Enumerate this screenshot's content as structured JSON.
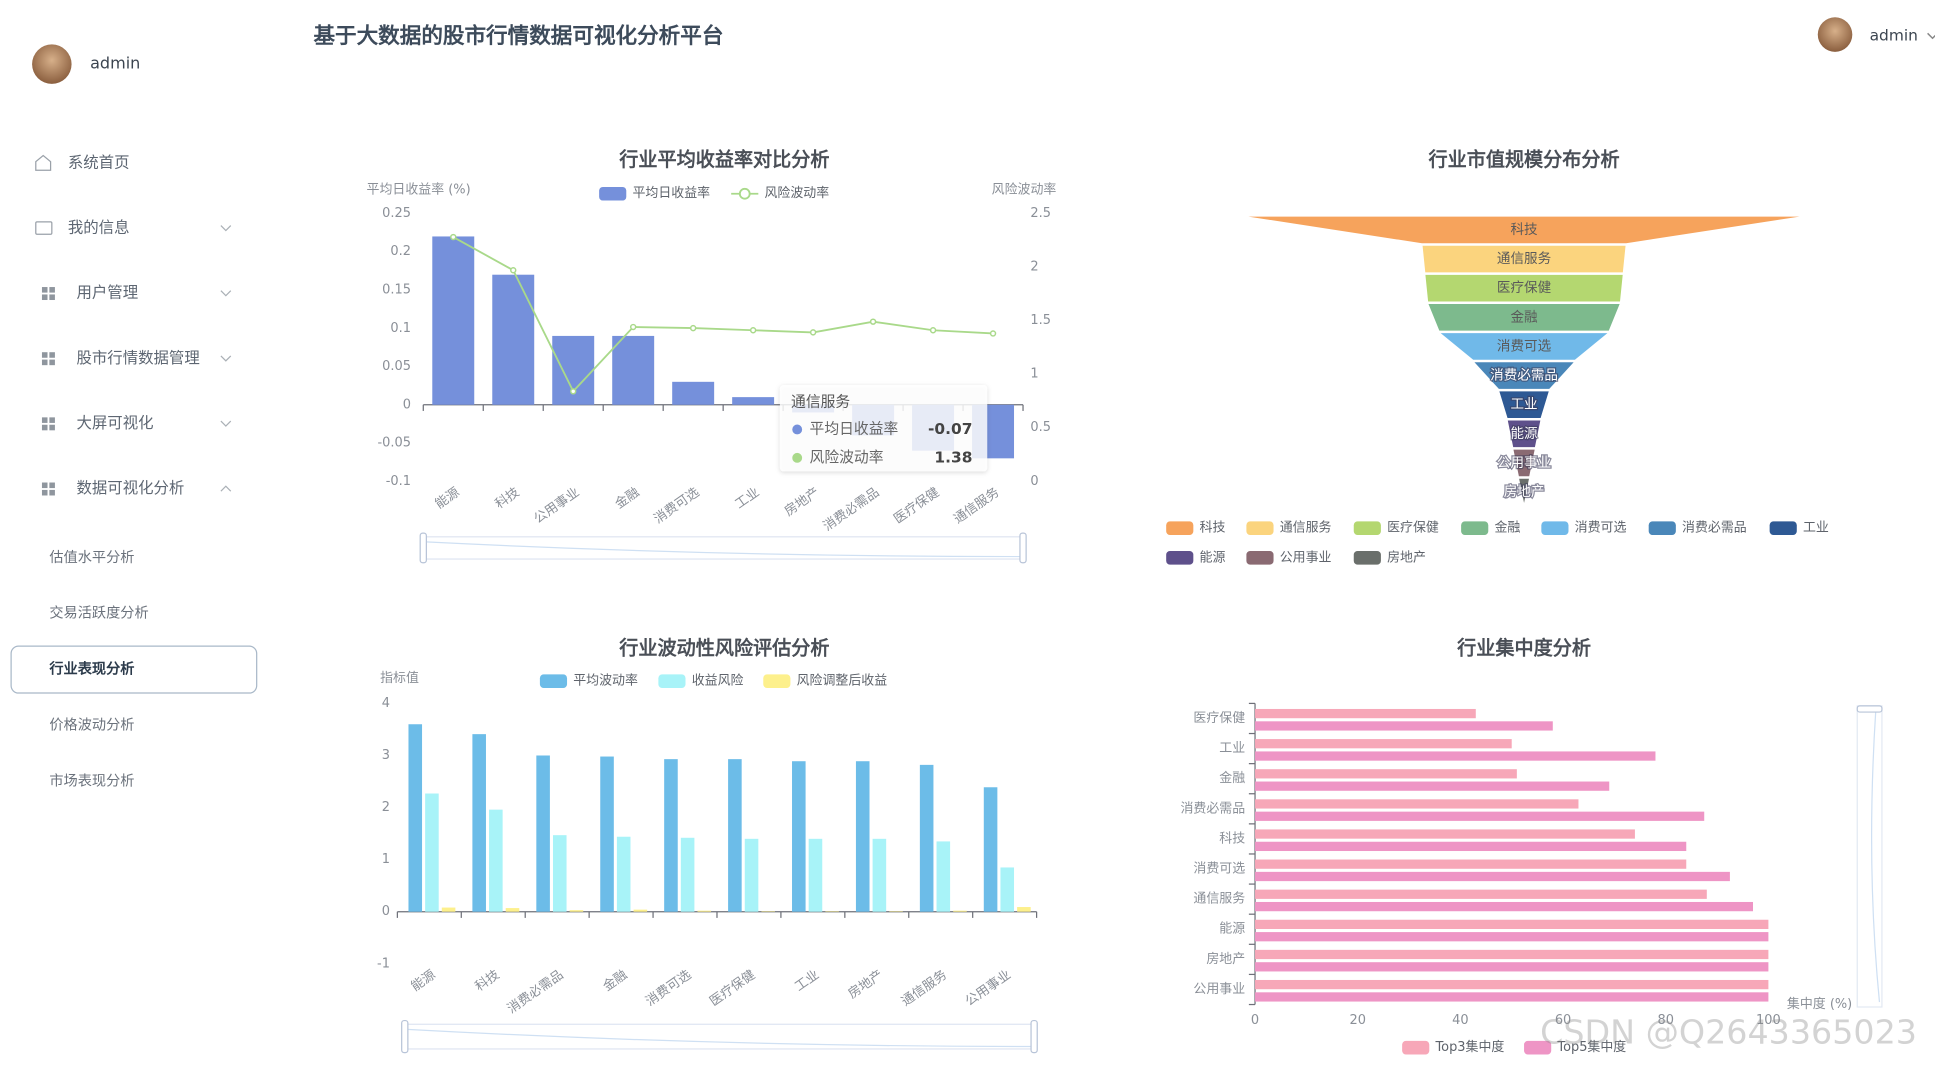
{
  "header": {
    "title": "基于大数据的股市行情数据可视化分析平台",
    "user": "admin"
  },
  "sidebar": {
    "user": "admin",
    "menu": [
      {
        "label": "系统首页"
      },
      {
        "label": "我的信息"
      },
      {
        "label": "用户管理"
      },
      {
        "label": "股市行情数据管理"
      },
      {
        "label": "大屏可视化"
      },
      {
        "label": "数据可视化分析",
        "children": [
          {
            "label": "估值水平分析"
          },
          {
            "label": "交易活跃度分析"
          },
          {
            "label": "行业表现分析",
            "active": true
          },
          {
            "label": "价格波动分析"
          },
          {
            "label": "市场表现分析"
          }
        ]
      }
    ]
  },
  "watermark": "CSDN @Q2643365023",
  "chart_data": [
    {
      "type": "combo",
      "title": "行业平均收益率对比分析",
      "ylabel": "平均日收益率 (%)",
      "y2label": "风险波动率",
      "categories": [
        "能源",
        "科技",
        "公用事业",
        "金融",
        "消费可选",
        "工业",
        "房地产",
        "消费必需品",
        "医疗保健",
        "通信服务"
      ],
      "series": [
        {
          "name": "平均日收益率",
          "color": "#7590db",
          "values": [
            0.22,
            0.17,
            0.09,
            0.09,
            0.03,
            0.01,
            -0.01,
            -0.04,
            -0.06,
            -0.07
          ]
        },
        {
          "name": "风险波动率",
          "color": "#a9d98a",
          "type": "line",
          "axis": "y2",
          "values": [
            2.28,
            1.97,
            0.84,
            1.44,
            1.43,
            1.41,
            1.39,
            1.49,
            1.41,
            1.38
          ]
        }
      ],
      "ylim": [
        -0.1,
        0.25
      ],
      "yticks": [
        -0.1,
        -0.05,
        0,
        0.05,
        0.1,
        0.15,
        0.2,
        0.25
      ],
      "y2lim": [
        0,
        2.5
      ],
      "y2ticks": [
        0,
        0.5,
        1,
        1.5,
        2,
        2.5
      ],
      "tooltip_index": 9
    },
    {
      "type": "funnel",
      "title": "行业市值规模分布分析",
      "categories": [
        "科技",
        "通信服务",
        "医疗保健",
        "金融",
        "消费可选",
        "消费必需品",
        "工业",
        "能源",
        "公用事业",
        "房地产"
      ],
      "values": [
        100,
        36,
        35,
        34,
        30,
        18,
        9,
        6,
        4,
        2
      ],
      "colors": [
        "#f6a35c",
        "#fbd47e",
        "#b4d770",
        "#7dba8d",
        "#70b9e9",
        "#4a87b9",
        "#2e5994",
        "#5e508b",
        "#8a6a72",
        "#6a6f6b"
      ]
    },
    {
      "type": "bar",
      "title": "行业波动性风险评估分析",
      "ylabel": "指标值",
      "categories": [
        "能源",
        "科技",
        "消费必需品",
        "金融",
        "消费可选",
        "医疗保健",
        "工业",
        "房地产",
        "通信服务",
        "公用事业"
      ],
      "series": [
        {
          "name": "平均波动率",
          "color": "#6cbce8",
          "values": [
            3.6,
            3.41,
            3.0,
            2.98,
            2.93,
            2.93,
            2.89,
            2.89,
            2.82,
            2.39
          ]
        },
        {
          "name": "收益风险",
          "color": "#a8f3f8",
          "values": [
            2.27,
            1.96,
            1.47,
            1.44,
            1.42,
            1.4,
            1.4,
            1.4,
            1.35,
            0.85
          ]
        },
        {
          "name": "风险调整后收益",
          "color": "#fdf08c",
          "values": [
            0.08,
            0.07,
            0.03,
            0.04,
            0.02,
            0.01,
            0.01,
            0.01,
            0.02,
            0.09
          ]
        }
      ],
      "ylim": [
        -1,
        4
      ],
      "yticks": [
        -1,
        0,
        1,
        2,
        3,
        4
      ]
    },
    {
      "type": "hbar",
      "title": "行业集中度分析",
      "xlabel": "集中度 (%)",
      "categories": [
        "医疗保健",
        "工业",
        "金融",
        "消费必需品",
        "科技",
        "消费可选",
        "通信服务",
        "能源",
        "房地产",
        "公用事业"
      ],
      "series": [
        {
          "name": "Top3集中度",
          "color": "#f7a7b8",
          "values": [
            43,
            50,
            51,
            63,
            74,
            84,
            88,
            100,
            100,
            100
          ]
        },
        {
          "name": "Top5集中度",
          "color": "#ee95c5",
          "values": [
            58,
            78,
            69,
            87.5,
            84,
            92.5,
            97,
            100,
            100,
            100
          ]
        }
      ],
      "xlim": [
        0,
        100
      ],
      "xticks": [
        0,
        20,
        40,
        60,
        80,
        100
      ]
    }
  ]
}
